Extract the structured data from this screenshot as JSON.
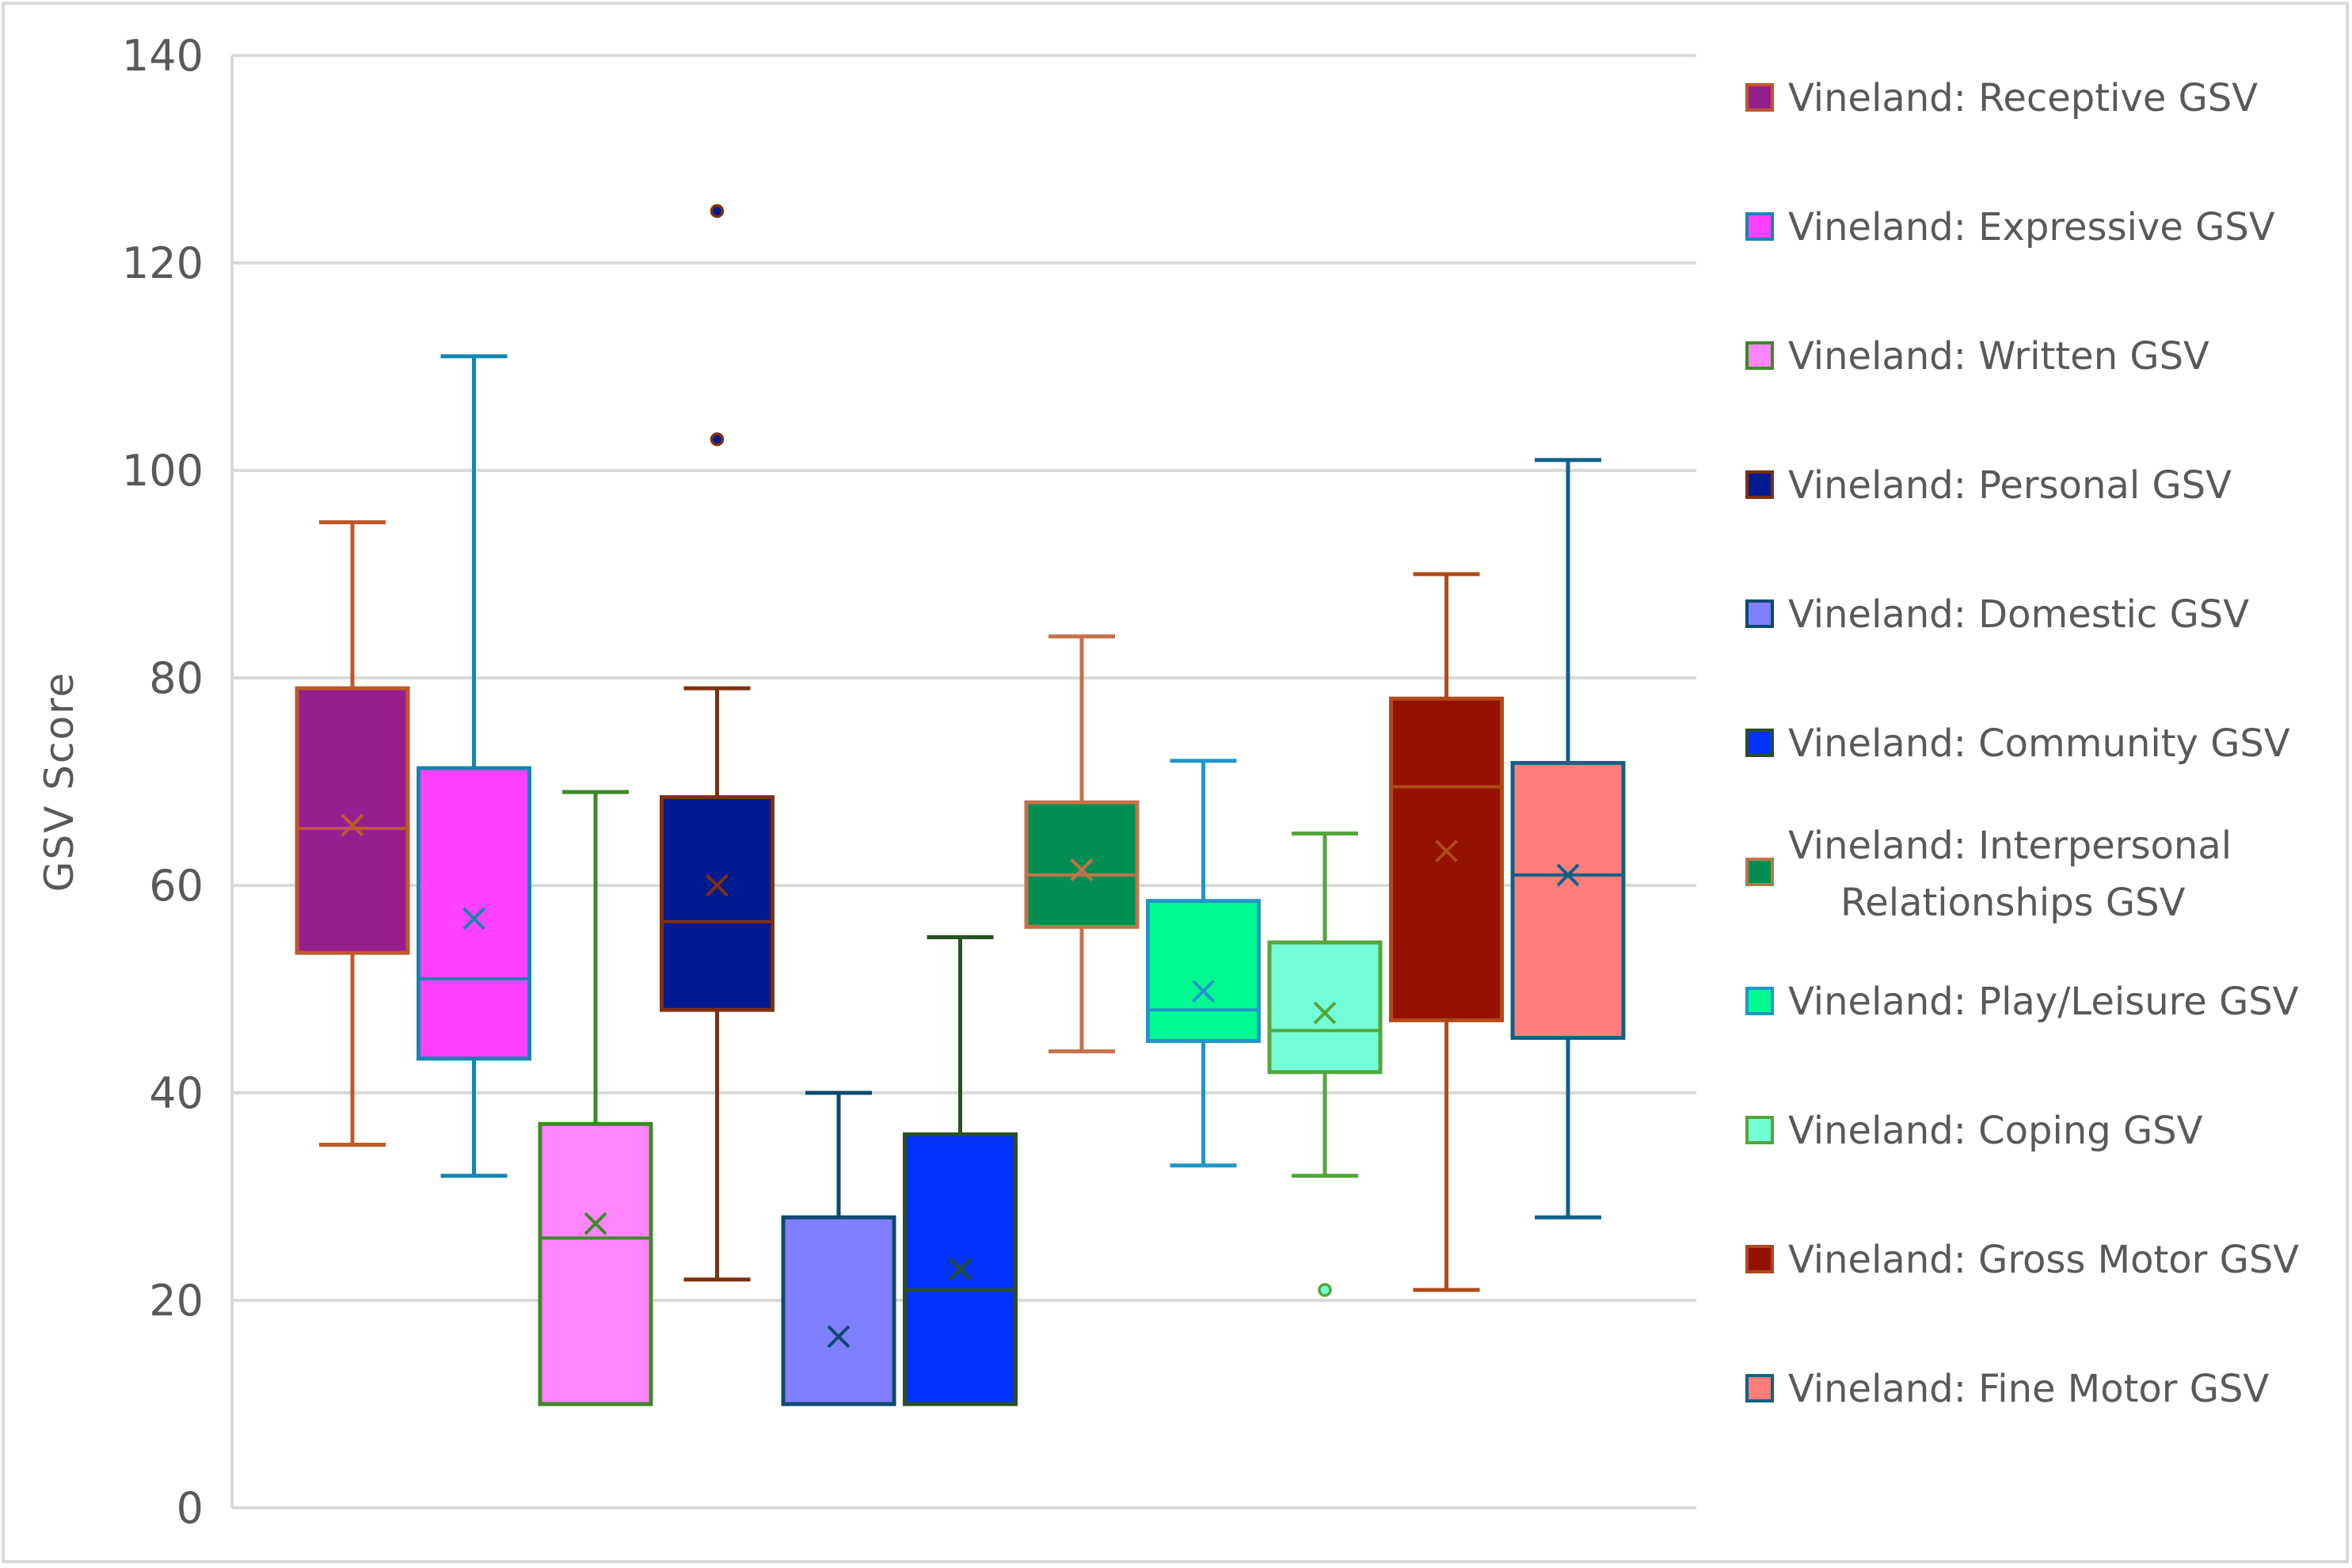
{
  "chart_data": {
    "type": "boxplot",
    "title": "",
    "xlabel": "",
    "ylabel": "GSV  Score",
    "ylim": [
      0,
      140
    ],
    "yticks": [
      0,
      20,
      40,
      60,
      80,
      100,
      120,
      140
    ],
    "ytick_labels": [
      "0",
      "20",
      "40",
      "60",
      "80",
      "100",
      "120",
      "140"
    ],
    "grid": true,
    "legend_position": "right",
    "series": [
      {
        "name": "Vineland: Receptive GSV",
        "legend_lines": [
          "Vineland: Receptive GSV"
        ],
        "fill": "#951f8f",
        "stroke": "#c0582a",
        "min": 35,
        "q1": 53.5,
        "median": 65.5,
        "q3": 79,
        "max": 95,
        "mean": 65.8,
        "outliers": []
      },
      {
        "name": "Vineland: Expressive GSV",
        "legend_lines": [
          "Vineland: Expressive GSV"
        ],
        "fill": "#ff40ff",
        "stroke": "#1386b0",
        "min": 32,
        "q1": 43.3,
        "median": 51,
        "q3": 71.3,
        "max": 111,
        "mean": 56.8,
        "outliers": []
      },
      {
        "name": "Vineland: Written GSV",
        "legend_lines": [
          "Vineland: Written GSV"
        ],
        "fill": "#ff85ff",
        "stroke": "#3c8a28",
        "min": 10,
        "q1": 10,
        "median": 26,
        "q3": 37,
        "max": 69,
        "mean": 27.4,
        "outliers": []
      },
      {
        "name": "Vineland: Personal GSV",
        "legend_lines": [
          "Vineland: Personal GSV"
        ],
        "fill": "#001a8f",
        "stroke": "#7f3010",
        "min": 22,
        "q1": 48,
        "median": 56.5,
        "q3": 68.5,
        "max": 79,
        "mean": 60,
        "outliers": [
          103,
          125
        ]
      },
      {
        "name": "Vineland: Domestic GSV",
        "legend_lines": [
          "Vineland: Domestic GSV"
        ],
        "fill": "#7f80ff",
        "stroke": "#0e4a6e",
        "min": 10,
        "q1": 10,
        "median": 10,
        "q3": 28,
        "max": 40,
        "mean": 16.5,
        "outliers": []
      },
      {
        "name": "Vineland: Community GSV",
        "legend_lines": [
          "Vineland: Community GSV"
        ],
        "fill": "#0433ff",
        "stroke": "#2a5020",
        "min": 10,
        "q1": 10,
        "median": 21,
        "q3": 36,
        "max": 55,
        "mean": 23,
        "outliers": []
      },
      {
        "name": "Vineland: Interpersonal Relationships GSV",
        "legend_lines": [
          "Vineland: Interpersonal",
          "Relationships GSV"
        ],
        "fill": "#008f51",
        "stroke": "#c4724a",
        "min": 44,
        "q1": 56,
        "median": 61,
        "q3": 68,
        "max": 84,
        "mean": 61.5,
        "outliers": []
      },
      {
        "name": "Vineland: Play/Leisure GSV",
        "legend_lines": [
          "Vineland: Play/Leisure GSV"
        ],
        "fill": "#00f991",
        "stroke": "#2196c8",
        "min": 33,
        "q1": 45,
        "median": 48,
        "q3": 58.5,
        "max": 72,
        "mean": 49.8,
        "outliers": []
      },
      {
        "name": "Vineland: Coping GSV",
        "legend_lines": [
          "Vineland: Coping GSV"
        ],
        "fill": "#73fdd6",
        "stroke": "#55a63a",
        "min": 32,
        "q1": 42,
        "median": 46,
        "q3": 54.5,
        "max": 65,
        "mean": 47.7,
        "outliers": [
          21
        ]
      },
      {
        "name": "Vineland: Gross Motor GSV",
        "legend_lines": [
          "Vineland: Gross Motor GSV"
        ],
        "fill": "#941100",
        "stroke": "#b04a18",
        "min": 21,
        "q1": 47,
        "median": 69.5,
        "q3": 78,
        "max": 90,
        "mean": 63.3,
        "outliers": []
      },
      {
        "name": "Vineland: Fine Motor GSV",
        "legend_lines": [
          "Vineland: Fine Motor GSV"
        ],
        "fill": "#ff7e79",
        "stroke": "#0e6288",
        "min": 28,
        "q1": 45.3,
        "median": 61,
        "q3": 71.8,
        "max": 101,
        "mean": 61,
        "outliers": []
      }
    ]
  },
  "colors": {
    "gridline": "#d9d9d9",
    "axis_text": "#595959",
    "background": "#ffffff"
  }
}
